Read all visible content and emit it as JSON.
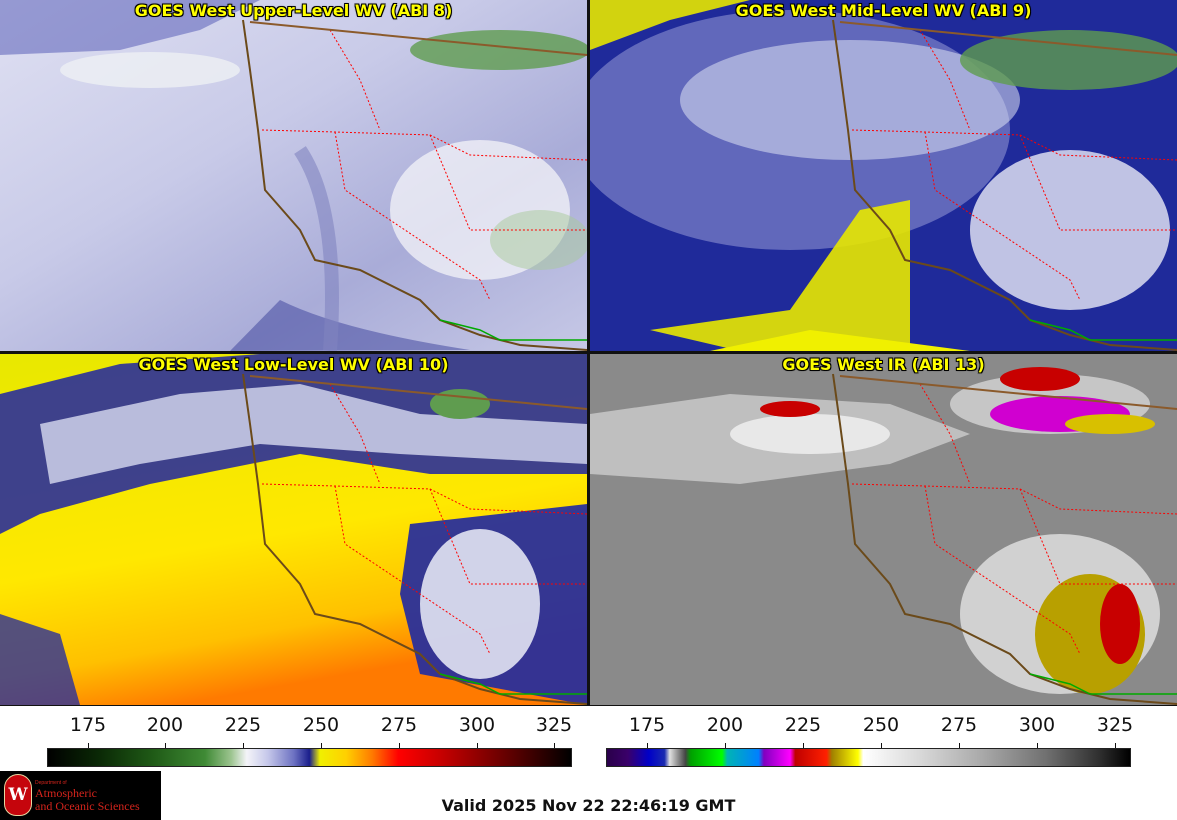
{
  "panels": [
    {
      "title": "GOES West Upper-Level WV (ABI 8)"
    },
    {
      "title": "GOES West Mid-Level WV (ABI 9)"
    },
    {
      "title": "GOES West Low-Level WV (ABI 10)"
    },
    {
      "title": "GOES West IR (ABI 13)"
    }
  ],
  "colorbars": [
    {
      "ticks": [
        "175",
        "200",
        "225",
        "250",
        "275",
        "300",
        "325"
      ]
    },
    {
      "ticks": [
        "175",
        "200",
        "225",
        "250",
        "275",
        "300",
        "325"
      ]
    }
  ],
  "logo": {
    "small_text": "Department of",
    "line1": "Atmospheric",
    "line2": "and Oceanic Sciences",
    "seal_letter": "W"
  },
  "valid_time": "Valid 2025 Nov 22 22:46:19 GMT",
  "colors": {
    "title_text": "#ffff00",
    "coastline": "#6b4a1a",
    "state_borders": "#ff0000",
    "international_border": "#8b5a2b",
    "mexico_coast": "#00aa00"
  }
}
